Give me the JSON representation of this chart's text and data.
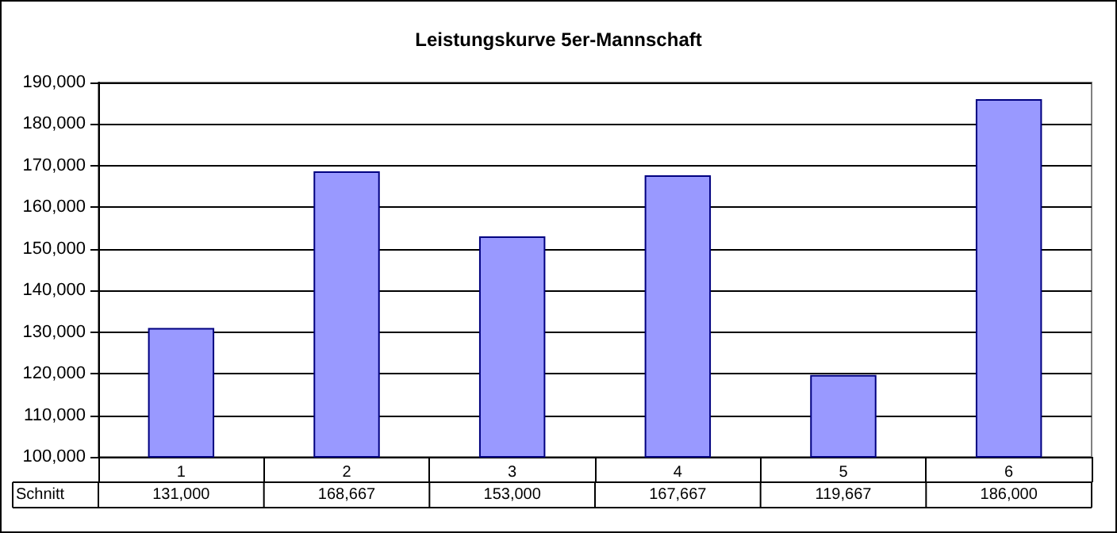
{
  "chart_data": {
    "type": "bar",
    "title": "Leistungskurve 5er-Mannschaft",
    "categories": [
      "1",
      "2",
      "3",
      "4",
      "5",
      "6"
    ],
    "series": [
      {
        "name": "Schnitt",
        "color": "#9999ff",
        "values": [
          131000,
          168667,
          153000,
          167667,
          119667,
          186000
        ],
        "value_labels": [
          "131,000",
          "168,667",
          "153,000",
          "167,667",
          "119,667",
          "186,000"
        ]
      }
    ],
    "ylim": [
      100000,
      190000
    ],
    "yticks": [
      {
        "value": 100000,
        "label": "100,000"
      },
      {
        "value": 110000,
        "label": "110,000"
      },
      {
        "value": 120000,
        "label": "120,000"
      },
      {
        "value": 130000,
        "label": "130,000"
      },
      {
        "value": 140000,
        "label": "140,000"
      },
      {
        "value": 150000,
        "label": "150,000"
      },
      {
        "value": 160000,
        "label": "160,000"
      },
      {
        "value": 170000,
        "label": "170,000"
      },
      {
        "value": 180000,
        "label": "180,000"
      },
      {
        "value": 190000,
        "label": "190,000"
      }
    ],
    "grid": "y",
    "legend": false
  }
}
